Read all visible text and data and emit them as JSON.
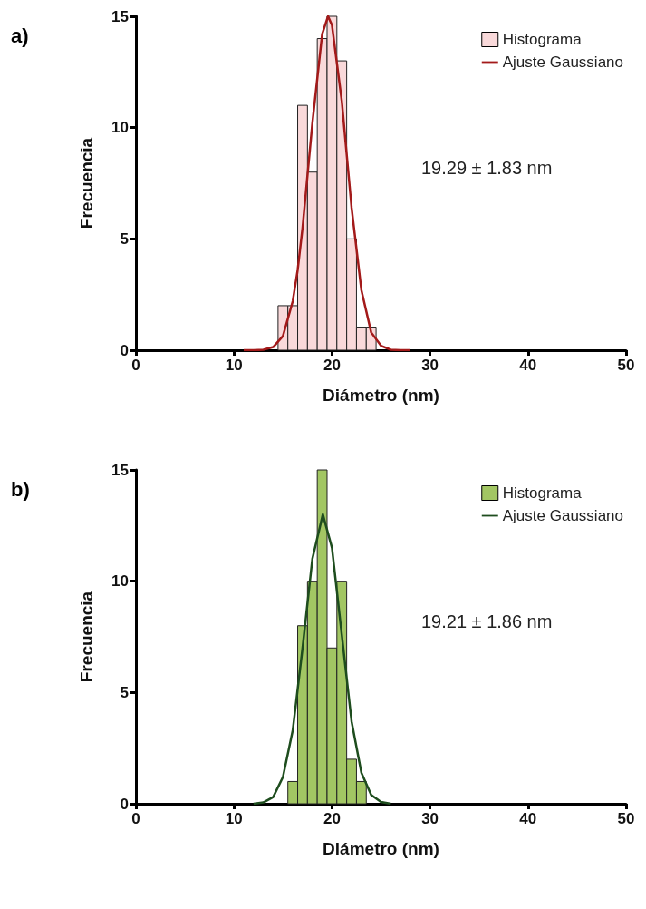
{
  "chart_data": [
    {
      "type": "histogram",
      "xlabel": "Diámetro (nm)",
      "ylabel": "Frecuencia",
      "annotations": [
        "a)",
        "19.29 ± 1.83 nm"
      ],
      "xlim": [
        0,
        50
      ],
      "xticks": [
        0,
        10,
        20,
        30,
        40,
        50
      ],
      "ylim": [
        0,
        15
      ],
      "yticks": [
        0,
        5,
        10,
        15
      ],
      "grid": false,
      "legend": "top right",
      "series": [
        {
          "name": "Histograma",
          "color": "#f9d9da",
          "bins": [
            14.5,
            15.5,
            16.5,
            17.5,
            18.5,
            19.5,
            20.5,
            21.5,
            22.5,
            23.5,
            24.5
          ],
          "values": [
            2,
            2,
            11,
            8,
            14,
            15,
            13,
            5,
            1,
            1
          ]
        },
        {
          "name": "Ajuste Gaussiano",
          "type": "line",
          "color": "#a31a1a",
          "marker": "none",
          "x": [
            11,
            12,
            13,
            14,
            15,
            16,
            16.5,
            17,
            18,
            19,
            19.6,
            20,
            21,
            22,
            23,
            24,
            25,
            26,
            27,
            28
          ],
          "values": [
            0,
            0,
            0.02,
            0.14,
            0.64,
            2.2,
            3.6,
            5.5,
            10.2,
            14.2,
            15,
            14.6,
            11.2,
            6.4,
            2.7,
            0.8,
            0.2,
            0.02,
            0,
            0
          ]
        }
      ]
    },
    {
      "type": "histogram",
      "xlabel": "Diámetro (nm)",
      "ylabel": "Frecuencia",
      "annotations": [
        "b)",
        "19.21 ± 1.86 nm"
      ],
      "xlim": [
        0,
        50
      ],
      "xticks": [
        0,
        10,
        20,
        30,
        40,
        50
      ],
      "ylim": [
        0,
        15
      ],
      "yticks": [
        0,
        5,
        10,
        15
      ],
      "grid": false,
      "legend": "top right",
      "series": [
        {
          "name": "Histograma",
          "color": "#a2c663",
          "bins": [
            15.5,
            16.5,
            17.5,
            18.5,
            19.5,
            20.5,
            21.5,
            22.5,
            23.5
          ],
          "values": [
            1,
            8,
            10,
            15,
            7,
            10,
            2,
            1
          ]
        },
        {
          "name": "Ajuste Gaussiano",
          "type": "line",
          "color": "#1e4d1e",
          "marker": "none",
          "x": [
            12,
            13,
            14,
            15,
            16,
            17,
            18,
            19.07,
            20,
            21,
            22,
            23,
            24,
            25,
            26
          ],
          "values": [
            0,
            0.06,
            0.3,
            1.2,
            3.3,
            7,
            11,
            13,
            11.5,
            7.6,
            3.7,
            1.4,
            0.4,
            0.08,
            0
          ]
        }
      ]
    }
  ]
}
